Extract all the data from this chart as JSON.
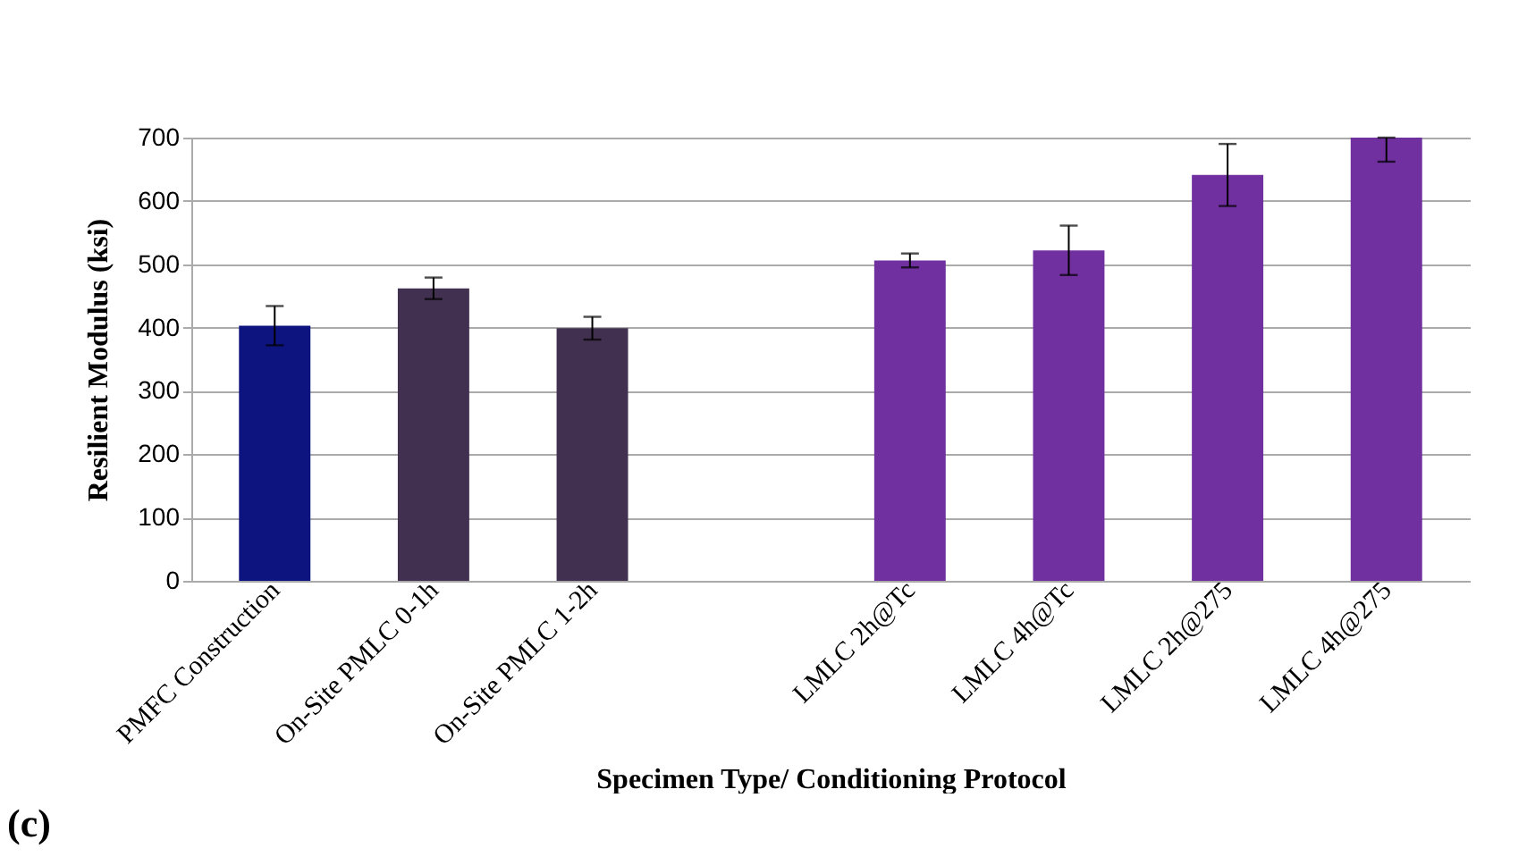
{
  "chart_data": {
    "type": "bar",
    "xlabel": "Specimen Type/ Conditioning Protocol",
    "ylabel": "Resilient Modulus (ksi)",
    "categories": [
      "PMFC Construction",
      "On-Site PMLC 0-1h",
      "On-Site PMLC 1-2h",
      null,
      "LMLC 2h@Tc",
      "LMLC 4h@Tc",
      "LMLC 2h@275",
      "LMLC 4h@275"
    ],
    "values": [
      403,
      462,
      399,
      null,
      506,
      522,
      641,
      700
    ],
    "errors": [
      31,
      17,
      18,
      null,
      11,
      39,
      49,
      [
        662,
        700
      ]
    ],
    "colors": [
      "#0d1480",
      "#41304f",
      "#41304f",
      null,
      "#7030a0",
      "#7030a0",
      "#7030a0",
      "#7030a0"
    ],
    "ylim": [
      0,
      700
    ],
    "yticks": [
      0,
      100,
      200,
      300,
      400,
      500,
      600,
      700
    ],
    "grid": "y",
    "annotations": [
      "(c)"
    ]
  }
}
